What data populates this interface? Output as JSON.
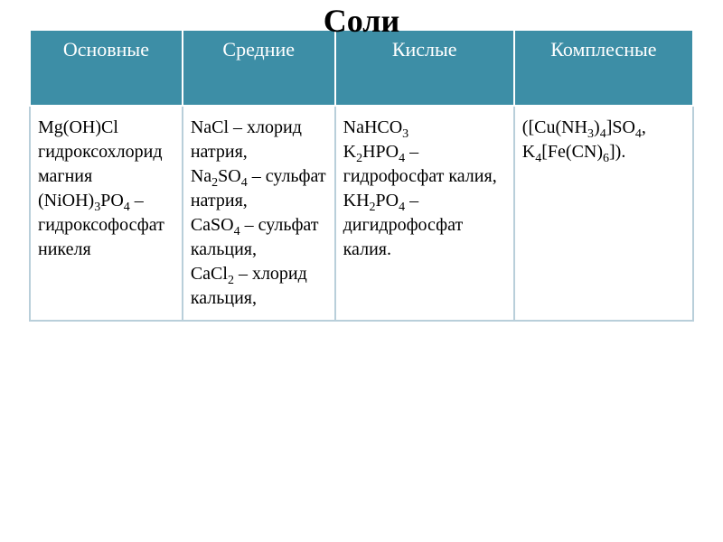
{
  "title": "Соли",
  "columns": [
    {
      "header": "Основные",
      "width": "23%"
    },
    {
      "header": "Средние",
      "width": "23%"
    },
    {
      "header": "Кислые",
      "width": "27%"
    },
    {
      "header": "Комплесные",
      "width": "27%"
    }
  ],
  "cells": {
    "c0": "Mg(OH)Cl гидроксохлорид магния (NiOH)<sub>3</sub>PO<sub>4</sub> – гидроксофосфат никеля",
    "c1": "NaCl – хлорид натрия,<br>Na<sub>2</sub>SO<sub>4</sub> – сульфат натрия,<br>CaSO<sub>4</sub> – сульфат кальция,<br>CaCl<sub>2</sub> – хлорид кальция,",
    "c2": "NaHCO<sub>3</sub><br>K<sub>2</sub>HPO<sub>4</sub> – гидрофосфат калия,<br>KH<sub>2</sub>PO<sub>4</sub> – дигидрофосфат калия.",
    "c3": "([Cu(NH<sub>3</sub>)<sub>4</sub>]SO<sub>4</sub>, K<sub>4</sub>[Fe(CN)<sub>6</sub>])."
  },
  "colors": {
    "header_bg": "#3d8ea6",
    "header_text": "#ffffff",
    "cell_text": "#000000",
    "border": "#b9cfda",
    "background": "#ffffff"
  },
  "typography": {
    "title_fontsize": 36,
    "header_fontsize": 22,
    "cell_fontsize": 20,
    "font_family": "Times New Roman"
  }
}
